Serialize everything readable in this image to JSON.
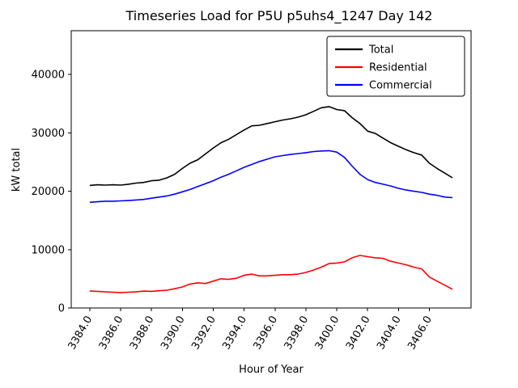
{
  "title": "Timeseries Load for P5U p5uhs4_1247  Day 142",
  "chart_data": {
    "type": "line",
    "title": "Timeseries Load for P5U p5uhs4_1247  Day 142",
    "xlabel": "Hour of Year",
    "ylabel": "kW total",
    "grid": false,
    "legend_position": "upper right",
    "xlim": [
      3382.8,
      3408.7
    ],
    "ylim": [
      0,
      47500
    ],
    "xticks": [
      3384,
      3386,
      3388,
      3390,
      3392,
      3394,
      3396,
      3398,
      3400,
      3402,
      3404,
      3406
    ],
    "xtick_labels": [
      "3384.0",
      "3386.0",
      "3388.0",
      "3390.0",
      "3392.0",
      "3394.0",
      "3396.0",
      "3398.0",
      "3400.0",
      "3402.0",
      "3404.0",
      "3406.0"
    ],
    "yticks": [
      0,
      10000,
      20000,
      30000,
      40000
    ],
    "ytick_labels": [
      "0",
      "10000",
      "20000",
      "30000",
      "40000"
    ],
    "x": [
      3384.0,
      3384.5,
      3385.0,
      3385.5,
      3386.0,
      3386.5,
      3387.0,
      3387.5,
      3388.0,
      3388.5,
      3389.0,
      3389.5,
      3390.0,
      3390.5,
      3391.0,
      3391.5,
      3392.0,
      3392.5,
      3393.0,
      3393.5,
      3394.0,
      3394.5,
      3395.0,
      3395.5,
      3396.0,
      3396.5,
      3397.0,
      3397.5,
      3398.0,
      3398.5,
      3399.0,
      3399.5,
      3400.0,
      3400.5,
      3401.0,
      3401.5,
      3402.0,
      3402.5,
      3403.0,
      3403.5,
      3404.0,
      3404.5,
      3405.0,
      3405.5,
      3406.0,
      3406.5,
      3407.0,
      3407.5
    ],
    "series": [
      {
        "name": "Total",
        "color": "#000000",
        "values": [
          21000,
          21100,
          21050,
          21100,
          21050,
          21200,
          21400,
          21500,
          21800,
          21900,
          22300,
          22900,
          23900,
          24800,
          25400,
          26400,
          27400,
          28300,
          28900,
          29700,
          30500,
          31200,
          31300,
          31600,
          31900,
          32200,
          32400,
          32700,
          33100,
          33700,
          34300,
          34500,
          34000,
          33800,
          32600,
          31600,
          30300,
          29900,
          29100,
          28300,
          27700,
          27100,
          26600,
          26200,
          24800,
          23900,
          23100,
          22300
        ]
      },
      {
        "name": "Residential",
        "color": "#ff0000",
        "values": [
          2900,
          2850,
          2750,
          2700,
          2650,
          2700,
          2750,
          2900,
          2850,
          2950,
          3050,
          3300,
          3600,
          4100,
          4300,
          4200,
          4600,
          5000,
          4900,
          5100,
          5600,
          5800,
          5500,
          5500,
          5600,
          5700,
          5700,
          5800,
          6100,
          6500,
          7000,
          7600,
          7700,
          7900,
          8600,
          9000,
          8800,
          8600,
          8500,
          8000,
          7700,
          7400,
          7000,
          6700,
          5300,
          4600,
          3900,
          3200
        ]
      },
      {
        "name": "Commercial",
        "color": "#0000ff",
        "values": [
          18100,
          18200,
          18300,
          18300,
          18350,
          18400,
          18500,
          18600,
          18800,
          19000,
          19200,
          19500,
          19900,
          20300,
          20800,
          21300,
          21800,
          22400,
          22900,
          23500,
          24100,
          24600,
          25100,
          25500,
          25900,
          26100,
          26300,
          26450,
          26600,
          26800,
          26900,
          26950,
          26700,
          25800,
          24300,
          22900,
          22000,
          21500,
          21200,
          20900,
          20500,
          20200,
          20000,
          19800,
          19500,
          19300,
          19000,
          18900
        ]
      }
    ]
  }
}
